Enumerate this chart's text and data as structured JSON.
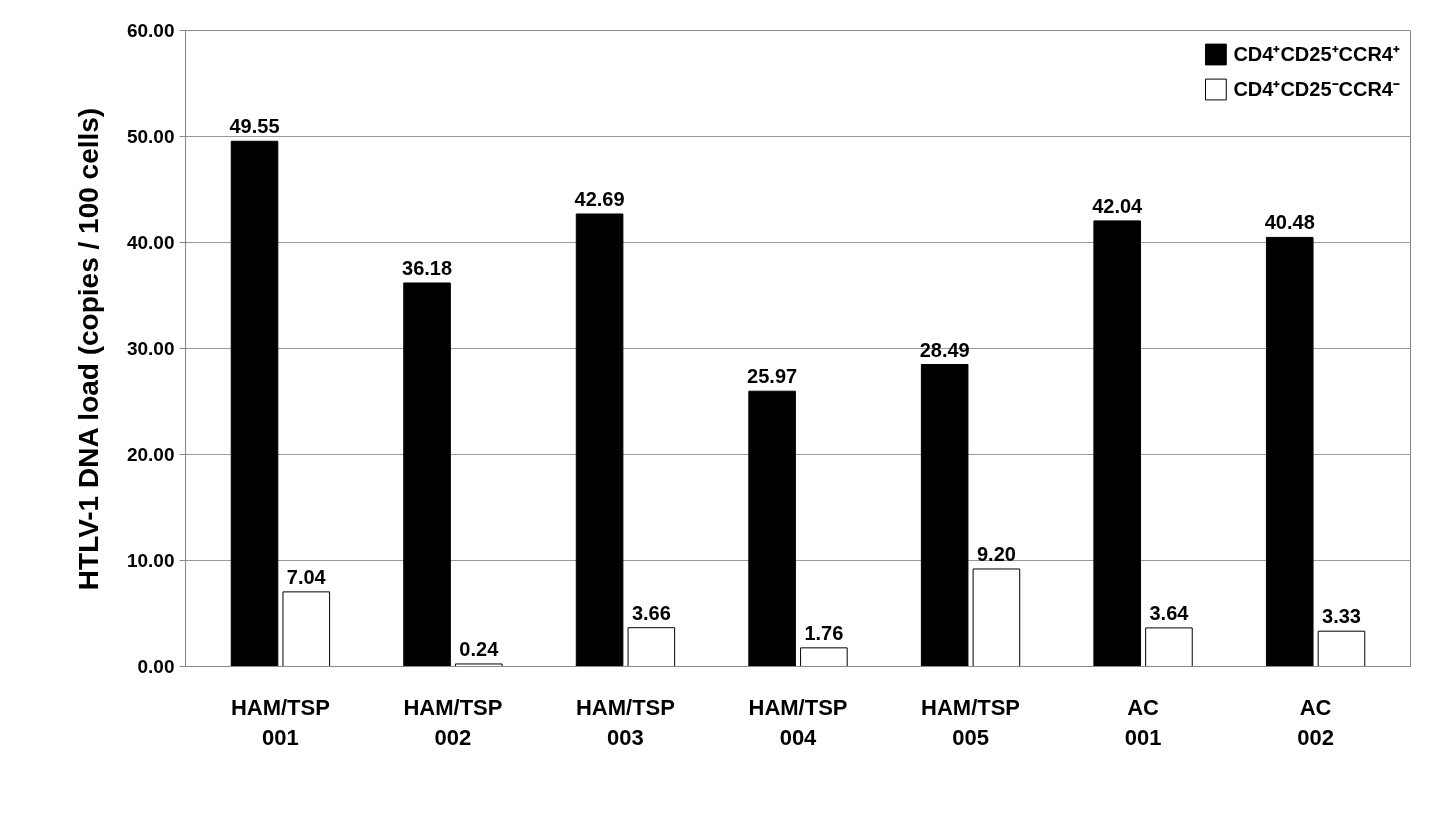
{
  "chart_data": {
    "type": "bar",
    "ylabel": "HTLV-1 DNA load (copies / 100 cells)",
    "categories": [
      "HAM/TSP\n001",
      "HAM/TSP\n002",
      "HAM/TSP\n003",
      "HAM/TSP\n004",
      "HAM/TSP\n005",
      "AC\n001",
      "AC\n002"
    ],
    "series": [
      {
        "name": "CD4⁺CD25⁺CCR4⁺",
        "color": "#000000",
        "values": [
          49.55,
          36.18,
          42.69,
          25.97,
          28.49,
          42.04,
          40.48
        ],
        "value_labels": [
          "49.55",
          "36.18",
          "42.69",
          "25.97",
          "28.49",
          "42.04",
          "40.48"
        ]
      },
      {
        "name": "CD4⁺CD25⁻CCR4⁻",
        "color": "#ffffff",
        "values": [
          7.04,
          0.24,
          3.66,
          1.76,
          9.2,
          3.64,
          3.33
        ],
        "value_labels": [
          "7.04",
          "0.24",
          "3.66",
          "1.76",
          "9.20",
          "3.64",
          "3.33"
        ]
      }
    ],
    "ylim": [
      0,
      60
    ],
    "yticks": [
      {
        "value": 0,
        "label": "0.00"
      },
      {
        "value": 10,
        "label": "10.00"
      },
      {
        "value": 20,
        "label": "20.00"
      },
      {
        "value": 30,
        "label": "30.00"
      },
      {
        "value": 40,
        "label": "40.00"
      },
      {
        "value": 50,
        "label": "50.00"
      },
      {
        "value": 60,
        "label": "60.00"
      }
    ],
    "grid": "y",
    "legend": "top right"
  }
}
